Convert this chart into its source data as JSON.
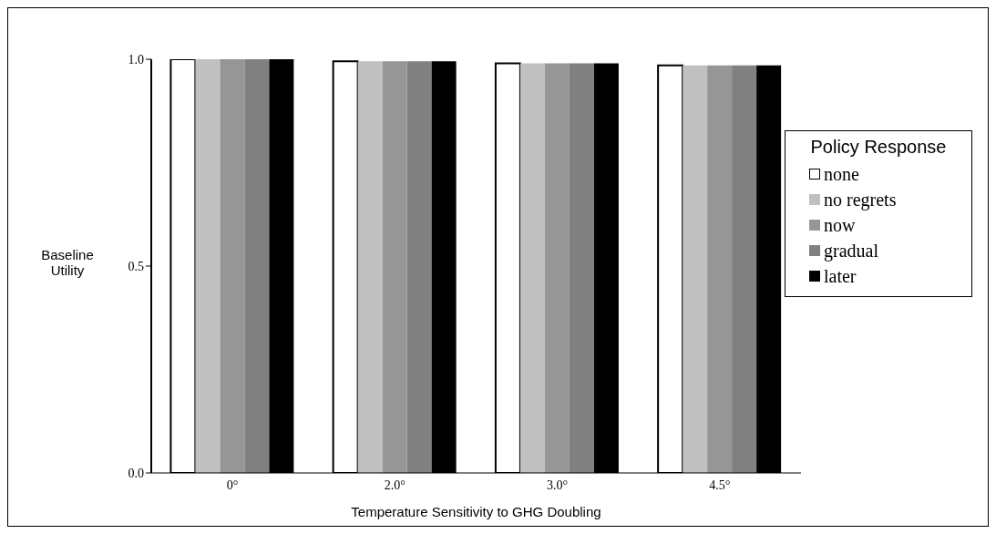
{
  "chart_data": {
    "type": "bar",
    "xlabel": "Temperature Sensitivity to GHG Doubling",
    "ylabel": "Baseline Utility",
    "legend_title": "Policy Response",
    "categories": [
      "0°",
      "2.0°",
      "3.0°",
      "4.5°"
    ],
    "series": [
      {
        "name": "none",
        "color": "#ffffff",
        "values": [
          1.0,
          0.995,
          0.99,
          0.985
        ]
      },
      {
        "name": "no regrets",
        "color": "#c0c0c0",
        "values": [
          1.0,
          0.995,
          0.99,
          0.985
        ]
      },
      {
        "name": "now",
        "color": "#969696",
        "values": [
          1.0,
          0.995,
          0.99,
          0.985
        ]
      },
      {
        "name": "gradual",
        "color": "#808080",
        "values": [
          1.0,
          0.995,
          0.99,
          0.985
        ]
      },
      {
        "name": "later",
        "color": "#000000",
        "values": [
          1.0,
          0.995,
          0.99,
          0.985
        ]
      }
    ],
    "ylim": [
      0,
      1
    ],
    "yticks": [
      {
        "value": 0,
        "label": "0.0"
      },
      {
        "value": 0.5,
        "label": "0.5"
      },
      {
        "value": 1,
        "label": "1.0"
      }
    ],
    "grid": false,
    "legend": "right"
  }
}
